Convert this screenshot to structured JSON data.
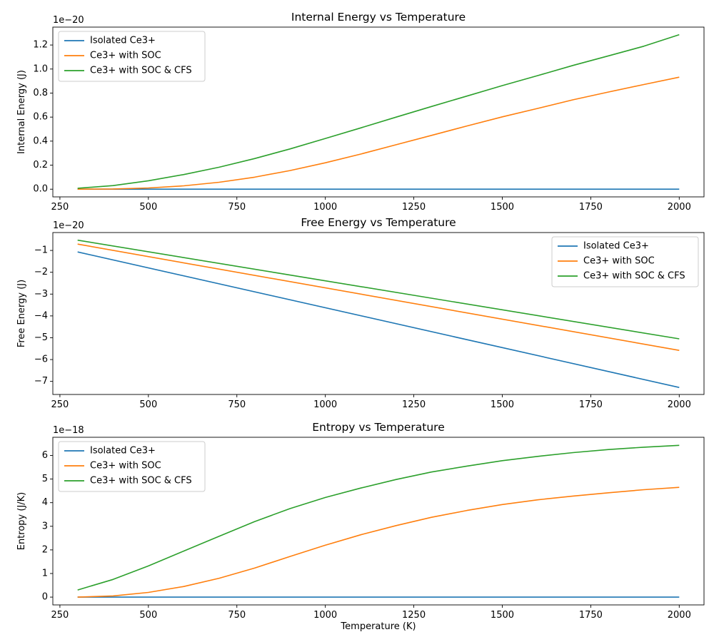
{
  "chart_data": [
    {
      "type": "line",
      "title": "Internal Energy vs Temperature",
      "xlabel": "",
      "ylabel": "Internal Energy (J)",
      "offset_label": "1e−20",
      "xlim": [
        230,
        2070
      ],
      "ylim": [
        -0.064,
        1.349
      ],
      "xticks": [
        250,
        500,
        750,
        1000,
        1250,
        1500,
        1750,
        2000
      ],
      "xtick_labels": [
        "250",
        "500",
        "750",
        "1000",
        "1250",
        "1500",
        "1750",
        "2000"
      ],
      "yticks": [
        0.0,
        0.2,
        0.4,
        0.6,
        0.8,
        1.0,
        1.2
      ],
      "ytick_labels": [
        "0.0",
        "0.2",
        "0.4",
        "0.6",
        "0.8",
        "1.0",
        "1.2"
      ],
      "legend": "upper left",
      "grid": false,
      "x": [
        300,
        400,
        500,
        600,
        700,
        800,
        900,
        1000,
        1100,
        1200,
        1300,
        1400,
        1500,
        1600,
        1700,
        1800,
        1900,
        2000
      ],
      "series": [
        {
          "name": "Isolated Ce3+",
          "color": "#1f77b4",
          "values": [
            0,
            0,
            0,
            0,
            0,
            0,
            0,
            0,
            0,
            0,
            0,
            0,
            0,
            0,
            0,
            0,
            0,
            0
          ]
        },
        {
          "name": "Ce3+ with SOC",
          "color": "#ff7f0e",
          "values": [
            0.0,
            0.002,
            0.01,
            0.028,
            0.058,
            0.1,
            0.155,
            0.22,
            0.292,
            0.37,
            0.448,
            0.526,
            0.602,
            0.672,
            0.744,
            0.809,
            0.871,
            0.932
          ]
        },
        {
          "name": "Ce3+ with SOC & CFS",
          "color": "#2ca02c",
          "values": [
            0.008,
            0.03,
            0.07,
            0.122,
            0.183,
            0.255,
            0.335,
            0.422,
            0.51,
            0.6,
            0.688,
            0.775,
            0.862,
            0.945,
            1.03,
            1.11,
            1.19,
            1.286
          ]
        }
      ]
    },
    {
      "type": "line",
      "title": "Free Energy vs Temperature",
      "xlabel": "",
      "ylabel": "Free Energy (J)",
      "offset_label": "1e−20",
      "xlim": [
        230,
        2070
      ],
      "ylim": [
        -7.6,
        -0.18
      ],
      "xticks": [
        250,
        500,
        750,
        1000,
        1250,
        1500,
        1750,
        2000
      ],
      "xtick_labels": [
        "250",
        "500",
        "750",
        "1000",
        "1250",
        "1500",
        "1750",
        "2000"
      ],
      "yticks": [
        -1,
        -2,
        -3,
        -4,
        -5,
        -6,
        -7
      ],
      "ytick_labels": [
        "−1",
        "−2",
        "−3",
        "−4",
        "−5",
        "−6",
        "−7"
      ],
      "legend": "upper right",
      "grid": false,
      "x": [
        300,
        2000
      ],
      "series": [
        {
          "name": "Isolated Ce3+",
          "color": "#1f77b4",
          "values": [
            -1.07,
            -7.28
          ]
        },
        {
          "name": "Ce3+ with SOC",
          "color": "#ff7f0e",
          "values": [
            -0.71,
            -5.58
          ]
        },
        {
          "name": "Ce3+ with SOC & CFS",
          "color": "#2ca02c",
          "values": [
            -0.53,
            -5.05
          ]
        }
      ]
    },
    {
      "type": "line",
      "title": "Entropy vs Temperature",
      "xlabel": "Temperature (K)",
      "ylabel": "Entropy (J/K)",
      "offset_label": "1e−18",
      "xlim": [
        230,
        2070
      ],
      "ylim": [
        -0.33,
        6.77
      ],
      "xticks": [
        250,
        500,
        750,
        1000,
        1250,
        1500,
        1750,
        2000
      ],
      "xtick_labels": [
        "250",
        "500",
        "750",
        "1000",
        "1250",
        "1500",
        "1750",
        "2000"
      ],
      "yticks": [
        0,
        1,
        2,
        3,
        4,
        5,
        6
      ],
      "ytick_labels": [
        "0",
        "1",
        "2",
        "3",
        "4",
        "5",
        "6"
      ],
      "legend": "upper left",
      "grid": false,
      "x": [
        300,
        400,
        500,
        600,
        700,
        800,
        900,
        1000,
        1100,
        1200,
        1300,
        1400,
        1500,
        1600,
        1700,
        1800,
        1900,
        2000
      ],
      "series": [
        {
          "name": "Isolated Ce3+",
          "color": "#1f77b4",
          "values": [
            0,
            0,
            0,
            0,
            0,
            0,
            0,
            0,
            0,
            0,
            0,
            0,
            0,
            0,
            0,
            0,
            0,
            0
          ]
        },
        {
          "name": "Ce3+ with SOC",
          "color": "#ff7f0e",
          "values": [
            0.0,
            0.05,
            0.2,
            0.45,
            0.8,
            1.23,
            1.72,
            2.2,
            2.64,
            3.03,
            3.38,
            3.67,
            3.92,
            4.12,
            4.28,
            4.42,
            4.55,
            4.65
          ]
        },
        {
          "name": "Ce3+ with SOC & CFS",
          "color": "#2ca02c",
          "values": [
            0.3,
            0.75,
            1.32,
            1.95,
            2.58,
            3.2,
            3.75,
            4.22,
            4.62,
            4.98,
            5.3,
            5.55,
            5.78,
            5.96,
            6.12,
            6.25,
            6.35,
            6.43
          ]
        }
      ]
    }
  ]
}
